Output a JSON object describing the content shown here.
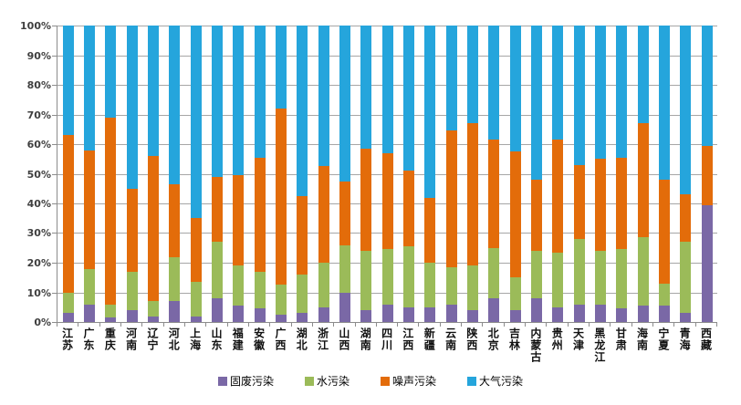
{
  "chart_data": {
    "type": "bar",
    "subtype": "stacked-100-percent",
    "title": "",
    "xlabel": "",
    "ylabel": "",
    "ylim": [
      0,
      100
    ],
    "grid": true,
    "legend_position": "bottom",
    "y_ticks": [
      "100%",
      "90%",
      "80%",
      "70%",
      "60%",
      "50%",
      "40%",
      "30%",
      "20%",
      "10%",
      "0%"
    ],
    "categories": [
      "江苏",
      "广东",
      "重庆",
      "河南",
      "辽宁",
      "河北",
      "上海",
      "山东",
      "福建",
      "安徽",
      "广西",
      "湖北",
      "浙江",
      "山西",
      "湖南",
      "四川",
      "江西",
      "新疆",
      "云南",
      "陕西",
      "北京",
      "吉林",
      "内蒙古",
      "贵州",
      "天津",
      "黑龙江",
      "甘肃",
      "海南",
      "宁夏",
      "青海",
      "西藏"
    ],
    "series": [
      {
        "name": "固废污染",
        "color": "#7A68A6",
        "values": [
          3,
          6,
          1.5,
          4,
          2,
          7,
          2,
          8,
          5.5,
          4.5,
          2.5,
          3,
          5,
          10,
          4,
          6,
          5,
          5,
          6,
          4,
          8,
          4,
          8,
          5,
          6,
          6,
          4.5,
          5.5,
          5.5,
          3,
          39.5
        ]
      },
      {
        "name": "水污染",
        "color": "#9BBB59",
        "values": [
          7,
          12,
          4.5,
          13,
          5,
          15,
          11.5,
          19,
          13.5,
          12.5,
          10,
          13,
          15,
          16,
          20,
          18.5,
          20.5,
          15,
          12.5,
          15,
          17,
          11,
          16,
          18.5,
          22,
          18,
          20,
          23,
          7.5,
          24,
          0
        ]
      },
      {
        "name": "噪声污染",
        "color": "#E36C0A",
        "values": [
          53,
          40,
          63,
          28,
          49,
          24.5,
          21.5,
          22,
          30.5,
          38.5,
          59.5,
          26.5,
          32.5,
          21.5,
          34.5,
          32.5,
          25.5,
          22,
          46,
          48,
          36.5,
          42.5,
          24,
          38,
          25,
          31,
          31,
          38.5,
          35,
          16,
          20
        ]
      },
      {
        "name": "大气污染",
        "color": "#25A5DC",
        "values": [
          37,
          42,
          31,
          55,
          44,
          53.5,
          65,
          51,
          50.5,
          44.5,
          28,
          57.5,
          47.5,
          52.5,
          41.5,
          43,
          49,
          58,
          35.5,
          33,
          38.5,
          42.5,
          52,
          38.5,
          47,
          45,
          44.5,
          33,
          52,
          57,
          40.5
        ]
      }
    ]
  }
}
